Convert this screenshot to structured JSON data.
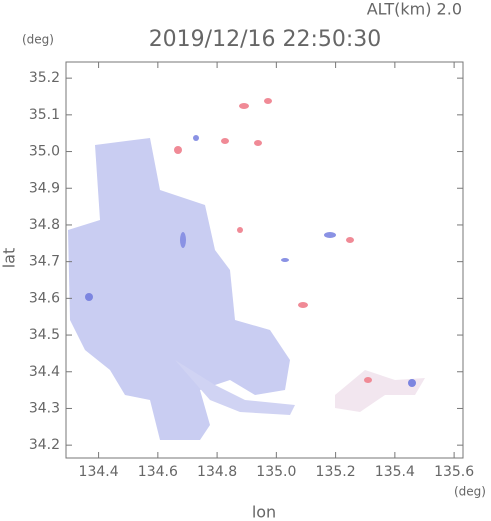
{
  "chart_data": {
    "type": "map",
    "title": "2019/12/16 22:50:30",
    "annotation": "ALT(km) 2.0",
    "xlabel": "lon",
    "ylabel": "lat",
    "xunit": "(deg)",
    "yunit": "(deg)",
    "xlim": [
      134.29,
      135.63
    ],
    "ylim": [
      34.165,
      35.244
    ],
    "xticks": [
      134.4,
      134.6,
      134.8,
      {
        "value": 135,
        "label": "135.0"
      },
      135.2,
      135.4,
      135.6
    ],
    "yticks": [
      34.2,
      34.3,
      34.4,
      34.5,
      34.6,
      34.7,
      34.8,
      34.9,
      {
        "value": 35,
        "label": "35.0"
      },
      35.1,
      35.2
    ]
  }
}
